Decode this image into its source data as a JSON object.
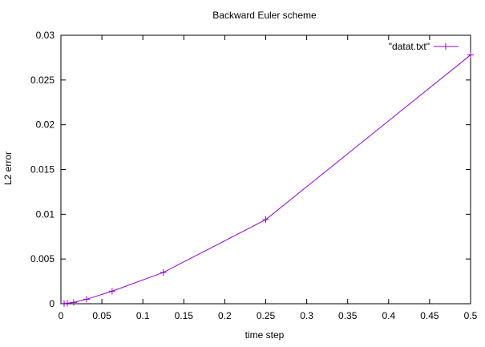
{
  "chart_data": {
    "type": "line",
    "title": "Backward Euler scheme",
    "xlabel": "time step",
    "ylabel": "L2 error",
    "xlim": [
      0,
      0.5
    ],
    "ylim": [
      0,
      0.03
    ],
    "x_ticks": [
      "0",
      "0.05",
      "0.1",
      "0.15",
      "0.2",
      "0.25",
      "0.3",
      "0.35",
      "0.4",
      "0.45",
      "0.5"
    ],
    "y_ticks": [
      "0",
      "0.005",
      "0.01",
      "0.015",
      "0.02",
      "0.025",
      "0.03"
    ],
    "grid": false,
    "legend_position": "top-right",
    "series": [
      {
        "name": "\"datat.txt\"",
        "color": "#9400d3",
        "marker": "plus",
        "x": [
          0.00390625,
          0.0078125,
          0.015625,
          0.03125,
          0.0625,
          0.125,
          0.25,
          0.5
        ],
        "y": [
          2e-05,
          6e-05,
          0.00015,
          0.0005,
          0.0014,
          0.0035,
          0.0094,
          0.0278
        ]
      }
    ]
  }
}
